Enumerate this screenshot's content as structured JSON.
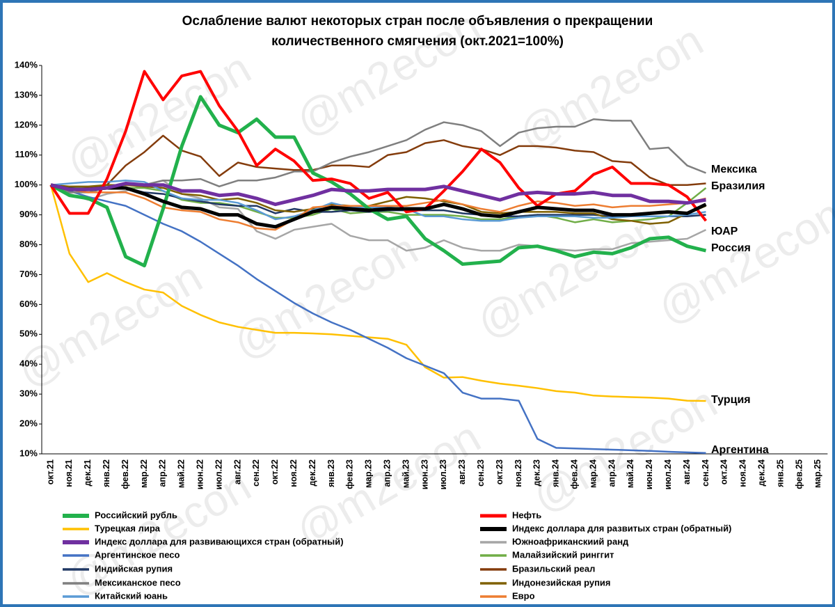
{
  "chart_data": {
    "type": "line",
    "title": [
      "Ослабление валют некоторых стран после объявления о прекращении",
      "количественного смягчения  (окт.2021=100%)"
    ],
    "watermark": "@m2econ",
    "categories": [
      "окт.21",
      "ноя.21",
      "дек.21",
      "янв.22",
      "фев.22",
      "мар.22",
      "апр.22",
      "май.22",
      "июн.22",
      "июл.22",
      "авг.22",
      "сен.22",
      "окт.22",
      "ноя.22",
      "дек.22",
      "янв.23",
      "фев.23",
      "мар.23",
      "апр.23",
      "май.23",
      "июн.23",
      "июл.23",
      "авг.23",
      "сен.23",
      "окт.23",
      "ноя.23",
      "дек.23",
      "янв.24",
      "фев.24",
      "мар.24",
      "апр.24",
      "май.24",
      "июн.24",
      "июл.24",
      "авг.24",
      "сен.24",
      "окт.24",
      "ноя.24",
      "дек.24",
      "янв.25",
      "фев.25",
      "мар.25"
    ],
    "ylim": [
      10,
      140
    ],
    "yticks": [
      {
        "value": 10,
        "label": "10%"
      },
      {
        "value": 20,
        "label": "20%"
      },
      {
        "value": 30,
        "label": "30%"
      },
      {
        "value": 40,
        "label": "40%"
      },
      {
        "value": 50,
        "label": "50%"
      },
      {
        "value": 60,
        "label": "60%"
      },
      {
        "value": 70,
        "label": "70%"
      },
      {
        "value": 80,
        "label": "80%"
      },
      {
        "value": 90,
        "label": "90%"
      },
      {
        "value": 100,
        "label": "100%"
      },
      {
        "value": 110,
        "label": "110%"
      },
      {
        "value": 120,
        "label": "120%"
      },
      {
        "value": 130,
        "label": "130%"
      },
      {
        "value": 140,
        "label": "140%"
      }
    ],
    "grid": false,
    "annotations": [
      "Мексика",
      "Бразилия",
      "ЮАР",
      "Россия",
      "Турция",
      "Аргентина"
    ],
    "series": [
      {
        "name": "Российский рубль",
        "color": "#22b14c",
        "width": 5,
        "values": [
          100,
          96.5,
          95.5,
          92.5,
          76,
          73,
          92,
          113,
          129.5,
          120,
          117.5,
          122,
          116,
          116,
          104,
          101,
          97,
          92,
          88.5,
          89.5,
          82,
          78,
          73.5,
          74,
          74.5,
          79,
          79.5,
          78,
          76,
          77.5,
          77,
          79,
          82,
          82.5,
          79.5,
          78,
          null,
          null,
          null,
          null,
          null,
          null
        ]
      },
      {
        "name": "Нефть",
        "color": "#ff0000",
        "width": 4,
        "values": [
          100,
          90.5,
          90.5,
          102,
          118,
          138,
          128.5,
          136.5,
          138,
          126.5,
          118,
          106.5,
          112,
          108,
          101.5,
          102,
          100.5,
          95.5,
          97.5,
          91,
          92,
          98,
          104.5,
          112,
          107.5,
          99,
          93,
          97,
          98,
          103.5,
          106,
          100.5,
          100.5,
          100,
          96,
          88,
          null,
          null,
          null,
          null,
          null,
          null
        ]
      },
      {
        "name": "Турецкая лира",
        "color": "#ffc000",
        "width": 2.5,
        "values": [
          100,
          77,
          67.5,
          70.5,
          67.5,
          65,
          64,
          59.5,
          56.5,
          54,
          52.5,
          51.5,
          50.5,
          50.5,
          50.3,
          50,
          49.5,
          49,
          48.5,
          46.5,
          39,
          35.5,
          35.7,
          34.5,
          33.5,
          32.8,
          32,
          31,
          30.5,
          29.5,
          29.2,
          29,
          28.8,
          28.5,
          27.8,
          27.7,
          null,
          null,
          null,
          null,
          null,
          null
        ]
      },
      {
        "name": "Индекс доллара для развитых стран (обратный)",
        "color": "#000000",
        "width": 5,
        "values": [
          100,
          98.5,
          98.5,
          99,
          99,
          97,
          94.5,
          92.5,
          92,
          90,
          90,
          87,
          86,
          88.5,
          91,
          92.5,
          92,
          91.5,
          92,
          92,
          92,
          93.5,
          92,
          90,
          89.5,
          91,
          92.5,
          92,
          91.5,
          91.5,
          90,
          90,
          90.5,
          91,
          90.5,
          93.5,
          null,
          null,
          null,
          null,
          null,
          null
        ]
      },
      {
        "name": "Индекс доллара для развивающихся стран (обратный)",
        "color": "#7030a0",
        "width": 5,
        "values": [
          100,
          98.5,
          98.5,
          99,
          100.5,
          100,
          100,
          98,
          98,
          96.5,
          97,
          95.5,
          93.5,
          95,
          96.5,
          98.5,
          98,
          98,
          98.5,
          98.5,
          98.5,
          99.5,
          98,
          96.5,
          95,
          97,
          97.5,
          97,
          97,
          97.5,
          96.5,
          96.5,
          94.5,
          94.5,
          94,
          95,
          null,
          null,
          null,
          null,
          null,
          null
        ]
      },
      {
        "name": "Южноафриканскиий ранд",
        "color": "#a6a6a6",
        "width": 2.5,
        "values": [
          100,
          97,
          95,
          97,
          98,
          100,
          101.5,
          97,
          95.5,
          92.5,
          92,
          84.5,
          82,
          85,
          86,
          87,
          83,
          81.5,
          81.5,
          78,
          79,
          81.5,
          79,
          78,
          78,
          80,
          79.5,
          78.5,
          78,
          78.5,
          78.5,
          80.5,
          81,
          81.5,
          82,
          85,
          null,
          null,
          null,
          null,
          null,
          null
        ]
      },
      {
        "name": "Аргентинское песо",
        "color": "#4472c4",
        "width": 2.5,
        "values": [
          100,
          98,
          96,
          94.5,
          93,
          90,
          87,
          84.5,
          81,
          77,
          73,
          68.5,
          64.5,
          60.5,
          57,
          54,
          51.5,
          48.5,
          45.5,
          42,
          39.5,
          37,
          30.5,
          28.5,
          28.5,
          27.8,
          15,
          12,
          11.8,
          11.6,
          11.4,
          11.2,
          11,
          10.7,
          10.5,
          10.3,
          null,
          null,
          null,
          null,
          null,
          null
        ]
      },
      {
        "name": "Малайзийский ринггит",
        "color": "#70ad47",
        "width": 2.5,
        "values": [
          100,
          99,
          99,
          99,
          99,
          99,
          98,
          95,
          94,
          94,
          93,
          91,
          89,
          89,
          90,
          92,
          90.5,
          91,
          91,
          90,
          90,
          90,
          89.5,
          88.5,
          88.5,
          89.5,
          90,
          89,
          87.5,
          88.5,
          87.5,
          88,
          88.5,
          89.5,
          94,
          99,
          null,
          null,
          null,
          null,
          null,
          null
        ]
      },
      {
        "name": "Индийская рупия",
        "color": "#203864",
        "width": 2.5,
        "values": [
          100,
          99,
          98.5,
          99,
          99,
          97.5,
          97,
          95.5,
          94.5,
          93.5,
          93,
          93,
          90.5,
          92,
          91,
          91,
          91.5,
          91,
          91.5,
          91.5,
          91.5,
          91.5,
          90.5,
          90,
          89.5,
          89.5,
          90,
          90,
          90,
          90,
          89.5,
          89.5,
          89.5,
          89.5,
          89.5,
          90,
          null,
          null,
          null,
          null,
          null,
          null
        ]
      },
      {
        "name": "Бразильский реал",
        "color": "#843c0c",
        "width": 2.5,
        "values": [
          100,
          98.5,
          99,
          100,
          106.5,
          111,
          116.5,
          111.5,
          109.5,
          103,
          107.5,
          106,
          105.5,
          105,
          105,
          106.5,
          106.5,
          106,
          110,
          111,
          114,
          115,
          113,
          112,
          110,
          113,
          113,
          112.5,
          111.5,
          111,
          108,
          107.5,
          102.5,
          100,
          100,
          100.5,
          null,
          null,
          null,
          null,
          null,
          null
        ]
      },
      {
        "name": "Мексиканское песо",
        "color": "#7f7f7f",
        "width": 2.5,
        "values": [
          100,
          97.5,
          97.5,
          99,
          100,
          100,
          101.5,
          101.5,
          102,
          99.5,
          101.5,
          101.5,
          102.5,
          104.5,
          104.5,
          107.5,
          109.5,
          111,
          113,
          115,
          118.5,
          121,
          120,
          118,
          113,
          117.5,
          119,
          119.5,
          119.5,
          122,
          121.5,
          121.5,
          112,
          112.5,
          106.5,
          104,
          null,
          null,
          null,
          null,
          null,
          null
        ]
      },
      {
        "name": "Индонезийская рупия",
        "color": "#7f6000",
        "width": 2.5,
        "values": [
          100,
          99.5,
          99.5,
          100,
          100,
          99.5,
          99,
          97,
          96.5,
          95,
          95.5,
          94,
          91.5,
          91,
          92,
          93.5,
          93,
          93,
          94.5,
          96,
          95.5,
          94.5,
          93.5,
          91,
          90.5,
          91,
          91,
          91,
          90.5,
          90.5,
          88.5,
          88,
          87,
          87.5,
          90.5,
          93,
          null,
          null,
          null,
          null,
          null,
          null
        ]
      },
      {
        "name": "Китайский юань",
        "color": "#5b9bd5",
        "width": 2.5,
        "values": [
          100,
          100.5,
          101,
          101,
          101.5,
          101,
          98,
          95.5,
          95,
          95,
          94,
          91.5,
          88.5,
          89.5,
          91.5,
          94,
          92.5,
          92.5,
          92.5,
          92,
          89.5,
          89.5,
          88.5,
          88,
          88,
          89,
          89.5,
          89.5,
          89.5,
          89,
          89,
          89.5,
          89.5,
          89.5,
          90,
          91,
          null,
          null,
          null,
          null,
          null,
          null
        ]
      },
      {
        "name": "Евро",
        "color": "#ed7d31",
        "width": 2.5,
        "values": [
          100,
          98.5,
          97.5,
          97.5,
          97.5,
          95.5,
          92.5,
          91.5,
          91,
          88.5,
          87.5,
          85.5,
          85,
          88.5,
          92.5,
          93,
          93,
          93,
          93,
          93,
          94,
          95,
          93.5,
          92,
          91,
          93,
          94.5,
          94,
          93,
          93.5,
          92.5,
          93,
          93,
          93.5,
          94,
          95.5,
          null,
          null,
          null,
          null,
          null,
          null
        ]
      }
    ]
  }
}
